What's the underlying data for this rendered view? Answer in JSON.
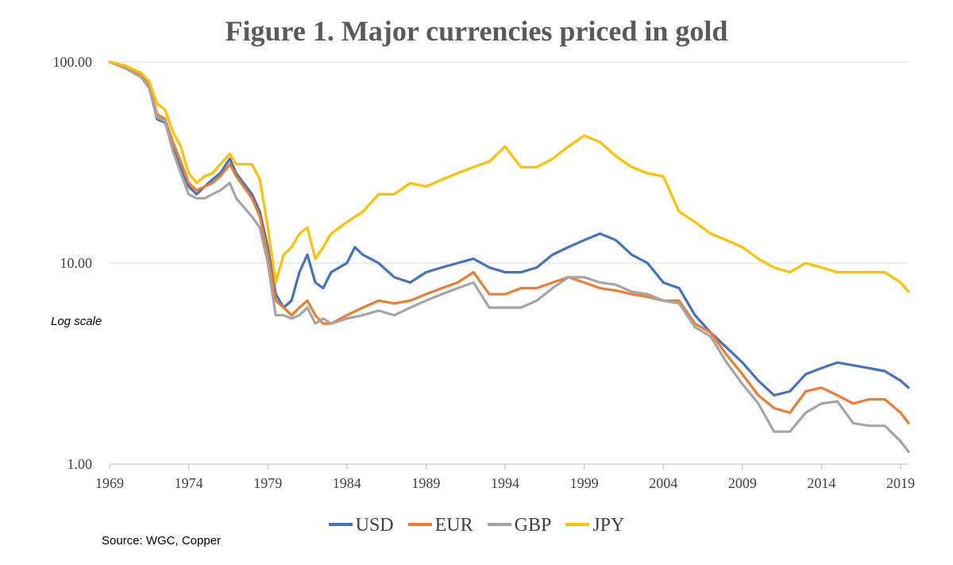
{
  "chart_data": {
    "type": "line",
    "title": "Figure 1.  Major currencies priced in gold",
    "y_scale": "log",
    "y_scale_note": "Log scale",
    "ylim": [
      1,
      100
    ],
    "y_ticks": [
      100,
      10,
      1
    ],
    "y_tick_labels": [
      "100.00",
      "10.00",
      "1.00"
    ],
    "xlim": [
      1969,
      2019.5
    ],
    "x_ticks": [
      1969,
      1974,
      1979,
      1984,
      1989,
      1994,
      1999,
      2004,
      2009,
      2014,
      2019
    ],
    "x_tick_labels": [
      "1969",
      "1974",
      "1979",
      "1984",
      "1989",
      "1994",
      "1999",
      "2004",
      "2009",
      "2014",
      "2019"
    ],
    "grid": "horizontal",
    "legend_position": "bottom",
    "source": "Source: WGC,  Copper",
    "series": [
      {
        "name": "USD",
        "color": "#4472C4",
        "points": [
          [
            1969,
            100
          ],
          [
            1970,
            95
          ],
          [
            1971,
            85
          ],
          [
            1971.5,
            75
          ],
          [
            1972,
            52
          ],
          [
            1972.5,
            50
          ],
          [
            1973,
            38
          ],
          [
            1973.5,
            30
          ],
          [
            1974,
            24
          ],
          [
            1974.5,
            22
          ],
          [
            1975,
            24
          ],
          [
            1975.5,
            26
          ],
          [
            1976,
            28
          ],
          [
            1976.6,
            33
          ],
          [
            1977,
            28
          ],
          [
            1978,
            22
          ],
          [
            1978.5,
            18
          ],
          [
            1979,
            12
          ],
          [
            1979.5,
            7
          ],
          [
            1980,
            6
          ],
          [
            1980.5,
            6.5
          ],
          [
            1981,
            9
          ],
          [
            1981.5,
            11
          ],
          [
            1982,
            8
          ],
          [
            1982.5,
            7.5
          ],
          [
            1983,
            9
          ],
          [
            1984,
            10
          ],
          [
            1984.5,
            12
          ],
          [
            1985,
            11
          ],
          [
            1986,
            10
          ],
          [
            1987,
            8.5
          ],
          [
            1988,
            8
          ],
          [
            1989,
            9
          ],
          [
            1990,
            9.5
          ],
          [
            1991,
            10
          ],
          [
            1992,
            10.5
          ],
          [
            1993,
            9.5
          ],
          [
            1994,
            9
          ],
          [
            1995,
            9
          ],
          [
            1996,
            9.5
          ],
          [
            1997,
            11
          ],
          [
            1998,
            12
          ],
          [
            1999,
            13
          ],
          [
            2000,
            14
          ],
          [
            2001,
            13
          ],
          [
            2002,
            11
          ],
          [
            2003,
            10
          ],
          [
            2004,
            8
          ],
          [
            2005,
            7.5
          ],
          [
            2006,
            5.5
          ],
          [
            2007,
            4.5
          ],
          [
            2008,
            3.8
          ],
          [
            2009,
            3.2
          ],
          [
            2010,
            2.6
          ],
          [
            2011,
            2.2
          ],
          [
            2012,
            2.3
          ],
          [
            2013,
            2.8
          ],
          [
            2014,
            3.0
          ],
          [
            2015,
            3.2
          ],
          [
            2016,
            3.1
          ],
          [
            2017,
            3.0
          ],
          [
            2018,
            2.9
          ],
          [
            2019,
            2.6
          ],
          [
            2019.5,
            2.4
          ]
        ]
      },
      {
        "name": "EUR",
        "color": "#ED7D31",
        "points": [
          [
            1969,
            100
          ],
          [
            1970,
            95
          ],
          [
            1971,
            86
          ],
          [
            1971.5,
            76
          ],
          [
            1972,
            55
          ],
          [
            1972.5,
            52
          ],
          [
            1973,
            40
          ],
          [
            1973.5,
            32
          ],
          [
            1974,
            25
          ],
          [
            1974.5,
            23
          ],
          [
            1975,
            24
          ],
          [
            1975.5,
            25
          ],
          [
            1976,
            27
          ],
          [
            1976.6,
            31
          ],
          [
            1977,
            27
          ],
          [
            1978,
            21
          ],
          [
            1978.5,
            17
          ],
          [
            1979,
            11
          ],
          [
            1979.5,
            6.5
          ],
          [
            1980,
            6
          ],
          [
            1980.5,
            5.5
          ],
          [
            1981,
            6
          ],
          [
            1981.5,
            6.5
          ],
          [
            1982,
            5.5
          ],
          [
            1982.5,
            5
          ],
          [
            1983,
            5
          ],
          [
            1984,
            5.5
          ],
          [
            1985,
            6
          ],
          [
            1986,
            6.5
          ],
          [
            1987,
            6.3
          ],
          [
            1988,
            6.5
          ],
          [
            1989,
            7
          ],
          [
            1990,
            7.5
          ],
          [
            1991,
            8
          ],
          [
            1992,
            9
          ],
          [
            1993,
            7
          ],
          [
            1994,
            7
          ],
          [
            1995,
            7.5
          ],
          [
            1996,
            7.5
          ],
          [
            1997,
            8
          ],
          [
            1998,
            8.5
          ],
          [
            1999,
            8
          ],
          [
            2000,
            7.5
          ],
          [
            2001,
            7.3
          ],
          [
            2002,
            7
          ],
          [
            2003,
            6.8
          ],
          [
            2004,
            6.5
          ],
          [
            2005,
            6.5
          ],
          [
            2006,
            5
          ],
          [
            2007,
            4.5
          ],
          [
            2008,
            3.5
          ],
          [
            2009,
            2.8
          ],
          [
            2010,
            2.2
          ],
          [
            2011,
            1.9
          ],
          [
            2012,
            1.8
          ],
          [
            2013,
            2.3
          ],
          [
            2014,
            2.4
          ],
          [
            2015,
            2.2
          ],
          [
            2016,
            2.0
          ],
          [
            2017,
            2.1
          ],
          [
            2018,
            2.1
          ],
          [
            2019,
            1.8
          ],
          [
            2019.5,
            1.6
          ]
        ]
      },
      {
        "name": "GBP",
        "color": "#A5A5A5",
        "points": [
          [
            1969,
            100
          ],
          [
            1970,
            93
          ],
          [
            1971,
            84
          ],
          [
            1971.5,
            74
          ],
          [
            1972,
            53
          ],
          [
            1972.5,
            51
          ],
          [
            1973,
            36
          ],
          [
            1973.5,
            28
          ],
          [
            1974,
            22
          ],
          [
            1974.5,
            21
          ],
          [
            1975,
            21
          ],
          [
            1975.5,
            22
          ],
          [
            1976,
            23
          ],
          [
            1976.6,
            25
          ],
          [
            1977,
            21
          ],
          [
            1978,
            17
          ],
          [
            1978.5,
            15
          ],
          [
            1979,
            10
          ],
          [
            1979.5,
            5.5
          ],
          [
            1980,
            5.5
          ],
          [
            1980.5,
            5.3
          ],
          [
            1981,
            5.5
          ],
          [
            1981.5,
            6
          ],
          [
            1982,
            5
          ],
          [
            1982.5,
            5.3
          ],
          [
            1983,
            5
          ],
          [
            1984,
            5.3
          ],
          [
            1985,
            5.5
          ],
          [
            1986,
            5.8
          ],
          [
            1987,
            5.5
          ],
          [
            1988,
            6
          ],
          [
            1989,
            6.5
          ],
          [
            1990,
            7
          ],
          [
            1991,
            7.5
          ],
          [
            1992,
            8
          ],
          [
            1993,
            6
          ],
          [
            1994,
            6
          ],
          [
            1995,
            6
          ],
          [
            1996,
            6.5
          ],
          [
            1997,
            7.5
          ],
          [
            1998,
            8.5
          ],
          [
            1999,
            8.5
          ],
          [
            2000,
            8
          ],
          [
            2001,
            7.8
          ],
          [
            2002,
            7.2
          ],
          [
            2003,
            7
          ],
          [
            2004,
            6.5
          ],
          [
            2005,
            6.3
          ],
          [
            2006,
            4.8
          ],
          [
            2007,
            4.3
          ],
          [
            2008,
            3.2
          ],
          [
            2009,
            2.5
          ],
          [
            2010,
            2
          ],
          [
            2011,
            1.45
          ],
          [
            2012,
            1.45
          ],
          [
            2013,
            1.8
          ],
          [
            2014,
            2
          ],
          [
            2015,
            2.05
          ],
          [
            2016,
            1.6
          ],
          [
            2017,
            1.55
          ],
          [
            2018,
            1.55
          ],
          [
            2019,
            1.3
          ],
          [
            2019.5,
            1.15
          ]
        ]
      },
      {
        "name": "JPY",
        "color": "#FFC000",
        "points": [
          [
            1969,
            100
          ],
          [
            1970,
            96
          ],
          [
            1971,
            88
          ],
          [
            1971.5,
            80
          ],
          [
            1972,
            62
          ],
          [
            1972.5,
            58
          ],
          [
            1973,
            45
          ],
          [
            1973.5,
            38
          ],
          [
            1974,
            28
          ],
          [
            1974.5,
            25
          ],
          [
            1975,
            27
          ],
          [
            1975.5,
            28
          ],
          [
            1976,
            31
          ],
          [
            1976.6,
            35
          ],
          [
            1977,
            31
          ],
          [
            1978,
            31
          ],
          [
            1978.5,
            26
          ],
          [
            1979,
            15
          ],
          [
            1979.5,
            8
          ],
          [
            1980,
            11
          ],
          [
            1980.5,
            12
          ],
          [
            1981,
            14
          ],
          [
            1981.5,
            15
          ],
          [
            1982,
            10.5
          ],
          [
            1982.5,
            12
          ],
          [
            1983,
            14
          ],
          [
            1984,
            16
          ],
          [
            1985,
            18
          ],
          [
            1986,
            22
          ],
          [
            1987,
            22
          ],
          [
            1988,
            25
          ],
          [
            1989,
            24
          ],
          [
            1990,
            26
          ],
          [
            1991,
            28
          ],
          [
            1992,
            30
          ],
          [
            1993,
            32
          ],
          [
            1994,
            38
          ],
          [
            1995,
            30
          ],
          [
            1996,
            30
          ],
          [
            1997,
            33
          ],
          [
            1998,
            38
          ],
          [
            1999,
            43
          ],
          [
            2000,
            40
          ],
          [
            2001,
            34
          ],
          [
            2002,
            30
          ],
          [
            2003,
            28
          ],
          [
            2004,
            27
          ],
          [
            2005,
            18
          ],
          [
            2006,
            16
          ],
          [
            2007,
            14
          ],
          [
            2008,
            13
          ],
          [
            2009,
            12
          ],
          [
            2010,
            10.5
          ],
          [
            2011,
            9.5
          ],
          [
            2012,
            9
          ],
          [
            2013,
            10
          ],
          [
            2014,
            9.5
          ],
          [
            2015,
            9
          ],
          [
            2016,
            9
          ],
          [
            2017,
            9
          ],
          [
            2018,
            9
          ],
          [
            2019,
            8
          ],
          [
            2019.5,
            7.2
          ]
        ]
      }
    ]
  }
}
